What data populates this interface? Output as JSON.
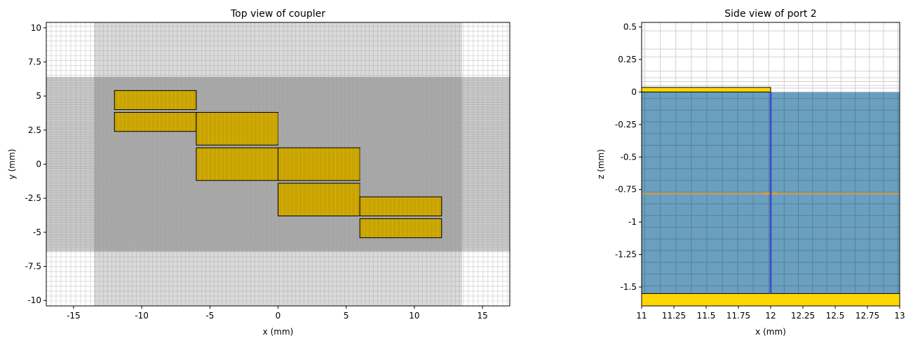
{
  "chart_data": [
    {
      "type": "rectangles",
      "title": "Top view of coupler",
      "xlabel": "x (mm)",
      "ylabel": "y (mm)",
      "xlim": [
        -17,
        17
      ],
      "ylim": [
        -10.4,
        10.4
      ],
      "xticks": [
        -15,
        -10,
        -5,
        0,
        5,
        10,
        15
      ],
      "xtick_labels": [
        "-15",
        "-10",
        "-5",
        "0",
        "5",
        "10",
        "15"
      ],
      "yticks": [
        10,
        7.5,
        5,
        2.5,
        0,
        -2.5,
        -5,
        -7.5,
        -10
      ],
      "ytick_labels": [
        "10",
        "7.5",
        "5",
        "2.5",
        "0",
        "-2.5",
        "-5",
        "-7.5",
        "-10"
      ],
      "grid": "mesh",
      "colors": {
        "conductor": "#c9a400",
        "mesh_dense": "#aaaaaa",
        "mesh_band": "#dadada"
      },
      "rects": [
        {
          "x0": -12,
          "x1": -6,
          "y0": 4.0,
          "y1": 5.4
        },
        {
          "x0": -12,
          "x1": -6,
          "y0": 2.4,
          "y1": 3.8
        },
        {
          "x0": -6,
          "x1": 0,
          "y0": 1.4,
          "y1": 3.8
        },
        {
          "x0": -6,
          "x1": 0,
          "y0": -1.2,
          "y1": 1.2
        },
        {
          "x0": 0,
          "x1": 6,
          "y0": -1.2,
          "y1": 1.2
        },
        {
          "x0": 0,
          "x1": 6,
          "y0": -3.8,
          "y1": -1.4
        },
        {
          "x0": 6,
          "x1": 12,
          "y0": -3.8,
          "y1": -2.4
        },
        {
          "x0": 6,
          "x1": 12,
          "y0": -5.4,
          "y1": -4.0
        }
      ]
    },
    {
      "type": "rectangles",
      "title": "Side view of port 2",
      "xlabel": "x (mm)",
      "ylabel": "z (mm)",
      "xlim": [
        11,
        13
      ],
      "ylim": [
        -1.645,
        0.535
      ],
      "xticks": [
        11,
        11.25,
        11.5,
        11.75,
        12,
        12.25,
        12.5,
        12.75,
        13
      ],
      "xtick_labels": [
        "11",
        "11.25",
        "11.5",
        "11.75",
        "12",
        "12.25",
        "12.5",
        "12.75",
        "13"
      ],
      "yticks": [
        0.5,
        0.25,
        0,
        -0.25,
        -0.5,
        -0.75,
        -1,
        -1.25,
        -1.5
      ],
      "ytick_labels": [
        "0.5",
        "0.25",
        "0",
        "-0.25",
        "-0.5",
        "-0.75",
        "-1",
        "-1.25",
        "-1.5"
      ],
      "grid": "mesh",
      "colors": {
        "substrate": "#6a9fbf",
        "conductor": "#ffd700",
        "port": "#3344cc",
        "port_line": "#d4a04a"
      },
      "substrate": {
        "x0": 11,
        "x1": 13,
        "z0": -1.55,
        "z1": 0
      },
      "ground": {
        "x0": 11,
        "x1": 13,
        "z0": -1.645,
        "z1": -1.55
      },
      "trace": {
        "x0": 11,
        "x1": 12,
        "z0": 0,
        "z1": 0.035
      },
      "port_x": 12,
      "port_line_z": -0.78
    }
  ]
}
